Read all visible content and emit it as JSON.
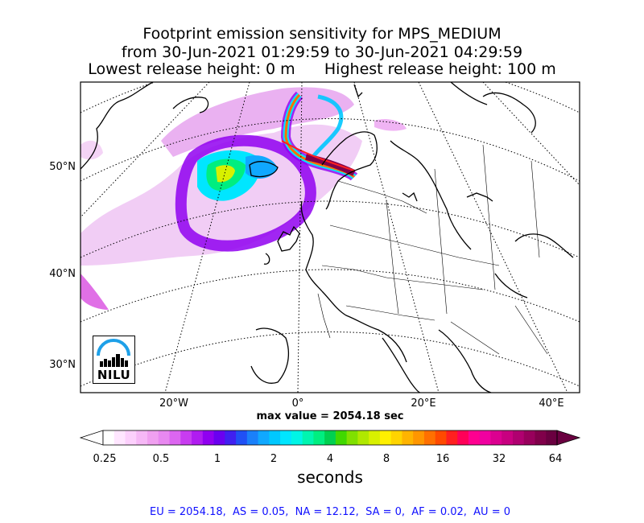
{
  "title": {
    "line1": "Footprint emission sensitivity for MPS_MEDIUM",
    "line2": "from 30-Jun-2021 01:29:59 to 30-Jun-2021 04:29:59",
    "line3": "Lowest release height: 0 m      Highest release height: 100 m"
  },
  "map": {
    "lat_labels": [
      "50°N",
      "40°N",
      "30°N"
    ],
    "lon_labels": [
      "20°W",
      "0°",
      "20°E",
      "40°E"
    ],
    "logo_text": "NILU",
    "max_value_label": "max value = 2054.18 sec"
  },
  "colorbar": {
    "tick_labels": [
      "0.25",
      "0.5",
      "1",
      "2",
      "4",
      "8",
      "16",
      "32",
      "64"
    ],
    "label": "seconds",
    "colors": [
      "#ffffff",
      "#ffe6ff",
      "#fcd0fc",
      "#f6b8f6",
      "#f0a0f0",
      "#e888f0",
      "#dc66f0",
      "#c83cf0",
      "#b01cf0",
      "#9000f0",
      "#6a00f0",
      "#4020f0",
      "#2050f5",
      "#1a80fa",
      "#10a8ff",
      "#00c8ff",
      "#00e6ff",
      "#00f5e6",
      "#00f5b0",
      "#00ee80",
      "#00d050",
      "#40d800",
      "#80e000",
      "#b0e800",
      "#d8f000",
      "#fff000",
      "#ffd400",
      "#ffb400",
      "#ff9600",
      "#ff7000",
      "#ff4a00",
      "#ff2020",
      "#ff0058",
      "#ff0090",
      "#f000a0",
      "#dc0090",
      "#c80080",
      "#b00070",
      "#98005c",
      "#80004a",
      "#6a0040"
    ]
  },
  "footer": "EU = 2054.18,  AS = 0.05,  NA = 12.12,  SA = 0,  AF = 0.02,  AU = 0"
}
